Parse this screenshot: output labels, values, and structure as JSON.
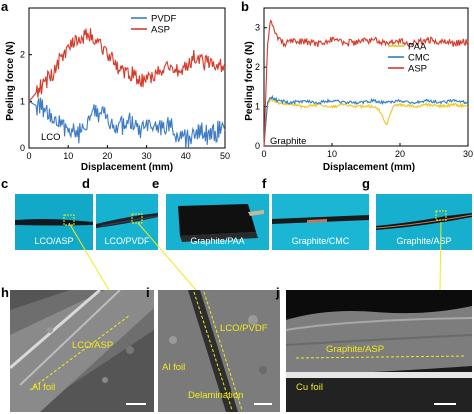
{
  "colors": {
    "pvdf": "#3d7cc4",
    "asp": "#d63a2a",
    "paa": "#f2c41a",
    "cmc": "#2f7fc1",
    "annotation": "#f2ea1c"
  },
  "chart_data": [
    {
      "panel": "a",
      "type": "line",
      "xlabel": "Displacement (mm)",
      "ylabel": "Peeling force (N)",
      "xlim": [
        0,
        50
      ],
      "ylim": [
        0,
        3
      ],
      "xticks": [
        0,
        10,
        20,
        30,
        40,
        50
      ],
      "yticks": [
        0,
        1,
        2
      ],
      "annotation": "LCO",
      "legend_position": "top-right",
      "series": [
        {
          "name": "PVDF",
          "color": "#3d7cc4",
          "x": [
            0,
            2,
            4,
            6,
            8,
            10,
            12,
            14,
            16,
            18,
            20,
            22,
            24,
            26,
            28,
            30,
            32,
            34,
            36,
            38,
            40,
            42,
            44,
            46,
            48,
            50
          ],
          "y": [
            1.0,
            0.9,
            0.85,
            0.6,
            0.5,
            0.45,
            0.3,
            0.35,
            0.9,
            0.75,
            0.6,
            0.5,
            0.45,
            0.55,
            0.35,
            0.4,
            0.35,
            0.5,
            0.45,
            0.3,
            0.2,
            0.2,
            0.35,
            0.25,
            0.35,
            0.5
          ]
        },
        {
          "name": "ASP",
          "color": "#d63a2a",
          "x": [
            0,
            2,
            4,
            6,
            8,
            10,
            12,
            14,
            16,
            18,
            20,
            22,
            24,
            26,
            28,
            30,
            32,
            34,
            36,
            38,
            40,
            42,
            44,
            46,
            48,
            50
          ],
          "y": [
            1.0,
            1.2,
            1.4,
            1.6,
            1.9,
            2.2,
            2.35,
            2.4,
            2.4,
            2.2,
            2.0,
            1.8,
            1.65,
            1.6,
            1.5,
            1.45,
            1.55,
            1.7,
            1.8,
            1.65,
            1.7,
            1.95,
            1.85,
            1.8,
            1.75,
            1.8
          ]
        }
      ]
    },
    {
      "panel": "b",
      "type": "line",
      "xlabel": "Displacement (mm)",
      "ylabel": "Peeling force (N)",
      "xlim": [
        0,
        30
      ],
      "ylim": [
        0,
        3.5
      ],
      "xticks": [
        0,
        10,
        20,
        30
      ],
      "yticks": [
        0,
        1,
        2,
        3
      ],
      "annotation": "Graphite",
      "legend_position": "center-right",
      "series": [
        {
          "name": "PAA",
          "color": "#f2c41a",
          "x": [
            0,
            0.5,
            1,
            2,
            4,
            6,
            8,
            10,
            12,
            14,
            16,
            17,
            18,
            18.5,
            19,
            20,
            22,
            24,
            26,
            28,
            30
          ],
          "y": [
            0,
            1.0,
            1.2,
            1.1,
            1.05,
            1.0,
            1.05,
            1.0,
            1.05,
            1.0,
            1.0,
            0.9,
            0.5,
            0.75,
            1.0,
            1.05,
            1.0,
            1.05,
            1.0,
            1.05,
            1.0
          ]
        },
        {
          "name": "CMC",
          "color": "#2f7fc1",
          "x": [
            0,
            0.5,
            1,
            2,
            4,
            6,
            8,
            10,
            12,
            14,
            16,
            18,
            20,
            22,
            24,
            26,
            28,
            30
          ],
          "y": [
            0,
            1.1,
            1.25,
            1.15,
            1.1,
            1.15,
            1.1,
            1.15,
            1.1,
            1.1,
            1.15,
            1.1,
            1.15,
            1.1,
            1.15,
            1.1,
            1.15,
            1.1
          ]
        },
        {
          "name": "ASP",
          "color": "#d63a2a",
          "x": [
            0,
            0.5,
            1,
            1.5,
            2,
            3,
            4,
            6,
            8,
            10,
            12,
            14,
            16,
            18,
            20,
            22,
            24,
            26,
            28,
            30
          ],
          "y": [
            0,
            2.5,
            3.2,
            2.9,
            2.75,
            2.6,
            2.7,
            2.65,
            2.6,
            2.7,
            2.6,
            2.65,
            2.7,
            2.6,
            2.65,
            2.6,
            2.7,
            2.65,
            2.6,
            2.65
          ]
        }
      ]
    }
  ],
  "photos": [
    {
      "panel": "c",
      "label": "LCO/ASP"
    },
    {
      "panel": "d",
      "label": "LCO/PVDF"
    },
    {
      "panel": "e",
      "label": "Graphite/PAA"
    },
    {
      "panel": "f",
      "label": "Graphite/CMC"
    },
    {
      "panel": "g",
      "label": "Graphite/ASP"
    }
  ],
  "sem": [
    {
      "panel": "h",
      "labels": [
        "LCO/ASP",
        "Al foil"
      ]
    },
    {
      "panel": "i",
      "labels": [
        "LCO/PVDF",
        "Al foil",
        "Delamination"
      ]
    },
    {
      "panel": "j",
      "labels": [
        "Graphite/ASP",
        "Cu foil"
      ]
    }
  ]
}
